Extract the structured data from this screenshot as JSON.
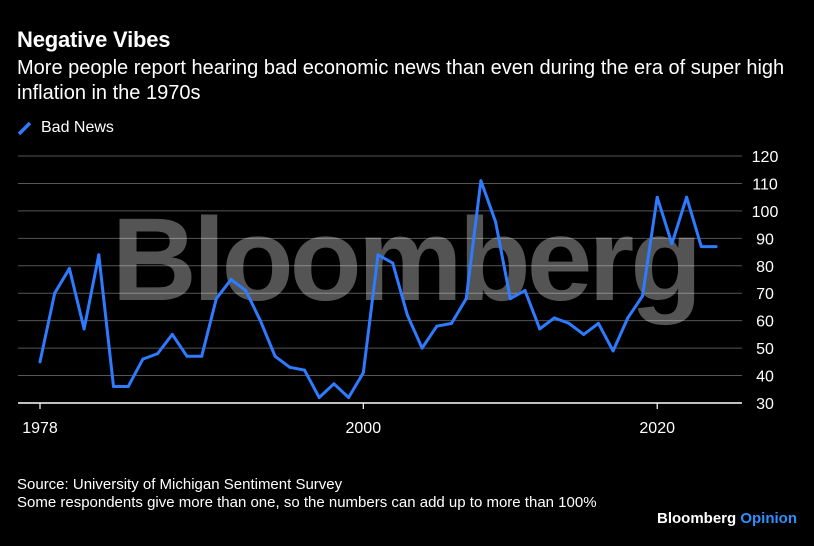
{
  "colors": {
    "background": "#000000",
    "line": "#2e7bff",
    "grid": "#555555",
    "text": "#ffffff"
  },
  "header": {
    "title": "Negative Vibes",
    "subtitle": "More people report hearing bad economic news than even during the era of super high inflation in the 1970s"
  },
  "footer": {
    "source": "Source: University of Michigan Sentiment Survey",
    "note": "Some respondents give more than one, so the numbers can add up to more than 100%",
    "brand": "Bloomberg",
    "brand_suffix": "Opinion"
  },
  "watermark": "Bloomberg",
  "chart_data": {
    "type": "line",
    "title": "Negative Vibes",
    "xlabel": "",
    "ylabel": "",
    "xlim": [
      1978,
      2024
    ],
    "ylim": [
      30,
      120
    ],
    "yticks": [
      30,
      40,
      50,
      60,
      70,
      80,
      90,
      100,
      110,
      120
    ],
    "xticks": [
      1978,
      2000,
      2020
    ],
    "legend_position": "top-left",
    "series": [
      {
        "name": "Bad News",
        "x": [
          1978,
          1979,
          1980,
          1981,
          1982,
          1983,
          1984,
          1985,
          1986,
          1987,
          1988,
          1989,
          1990,
          1991,
          1992,
          1993,
          1994,
          1995,
          1996,
          1997,
          1998,
          1999,
          2000,
          2001,
          2002,
          2003,
          2004,
          2005,
          2006,
          2007,
          2008,
          2009,
          2010,
          2011,
          2012,
          2013,
          2014,
          2015,
          2016,
          2017,
          2018,
          2019,
          2020,
          2021,
          2022,
          2023,
          2024
        ],
        "values": [
          45,
          70,
          79,
          57,
          84,
          36,
          36,
          46,
          48,
          55,
          47,
          47,
          68,
          75,
          71,
          60,
          47,
          43,
          42,
          32,
          37,
          32,
          41,
          84,
          81,
          62,
          50,
          58,
          59,
          68,
          111,
          96,
          68,
          71,
          57,
          61,
          59,
          55,
          59,
          49,
          61,
          69,
          105,
          88,
          105,
          87,
          87
        ]
      }
    ]
  }
}
